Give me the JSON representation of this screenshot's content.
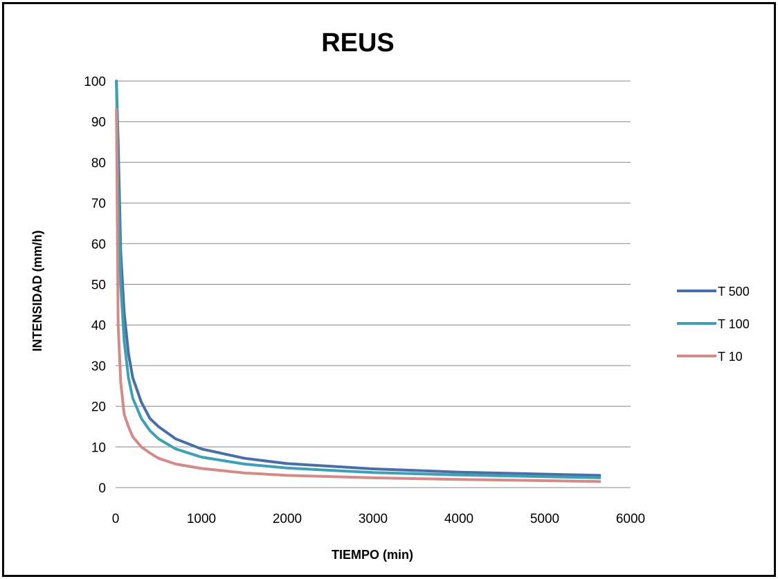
{
  "chart_data": {
    "type": "line",
    "title": "REUS",
    "xlabel": "TIEMPO (min)",
    "ylabel": "INTENSIDAD (mm/h)",
    "xlim": [
      0,
      6000
    ],
    "ylim": [
      0,
      100
    ],
    "xticks": [
      "0",
      "1000",
      "2000",
      "3000",
      "4000",
      "5000",
      "6000"
    ],
    "yticks": [
      "0",
      "10",
      "20",
      "30",
      "40",
      "50",
      "60",
      "70",
      "80",
      "90",
      "100"
    ],
    "grid": "horizontal",
    "legend_position": "right",
    "series": [
      {
        "name": "T 500",
        "color": "#4a6fa5",
        "x": [
          10,
          30,
          60,
          100,
          150,
          200,
          300,
          400,
          500,
          700,
          1000,
          1500,
          2000,
          3000,
          4000,
          5000,
          5640
        ],
        "y": [
          100,
          85,
          58,
          43,
          33,
          27,
          21,
          17,
          15,
          12,
          9.5,
          7.2,
          5.9,
          4.6,
          3.8,
          3.3,
          3.0
        ]
      },
      {
        "name": "T 100",
        "color": "#3fa0b3",
        "x": [
          10,
          30,
          60,
          100,
          150,
          200,
          300,
          400,
          500,
          700,
          1000,
          1500,
          2000,
          3000,
          4000,
          5000,
          5640
        ],
        "y": [
          100,
          75,
          50,
          36,
          27,
          22,
          17,
          14,
          12,
          9.5,
          7.5,
          5.8,
          4.8,
          3.7,
          3.1,
          2.7,
          2.4
        ]
      },
      {
        "name": "T 10",
        "color": "#d48a88",
        "x": [
          10,
          30,
          60,
          100,
          150,
          200,
          300,
          400,
          500,
          700,
          1000,
          1500,
          2000,
          3000,
          4000,
          5000,
          5640
        ],
        "y": [
          93,
          40,
          26,
          18,
          15,
          12.5,
          10,
          8.5,
          7.2,
          5.8,
          4.7,
          3.6,
          3.0,
          2.4,
          2.0,
          1.7,
          1.5
        ]
      }
    ]
  }
}
